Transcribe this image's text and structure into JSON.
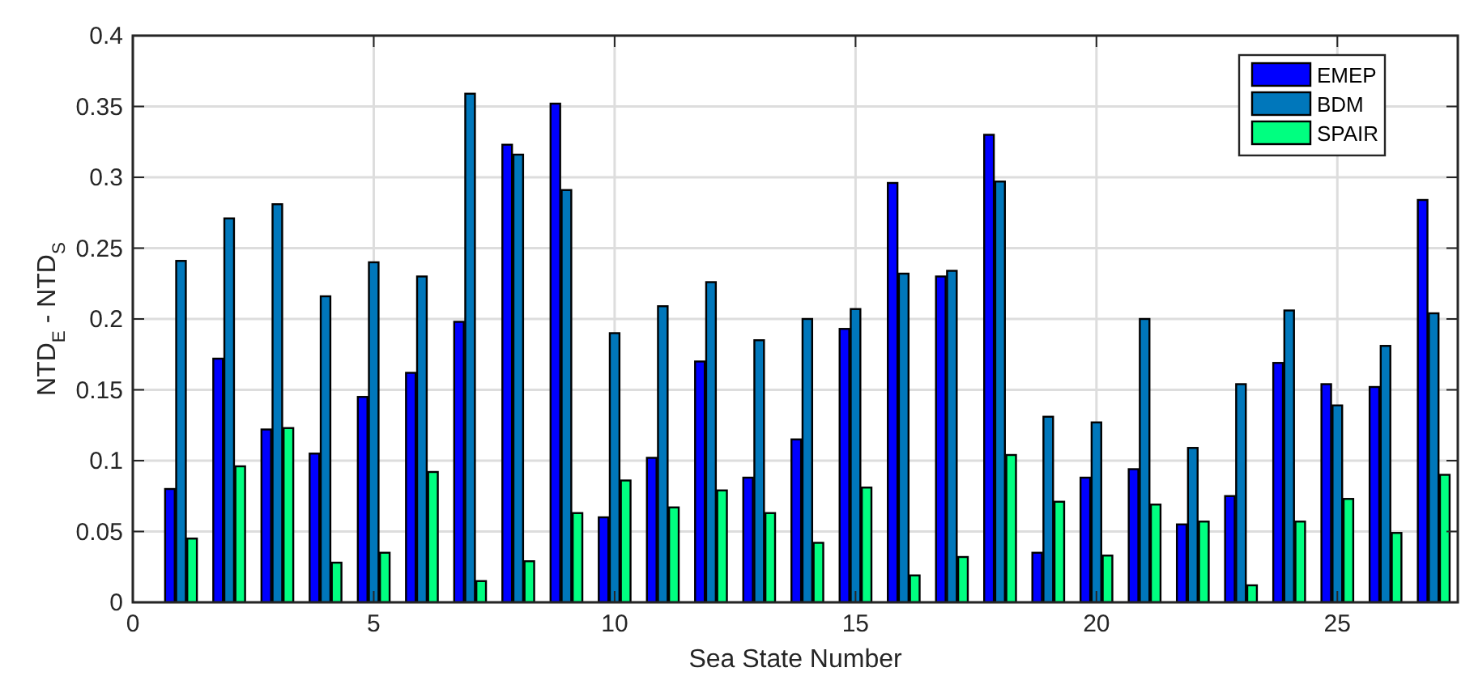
{
  "chart_data": {
    "type": "bar",
    "xlabel": "Sea State Number",
    "ylabel": "NTD$_{E}$ - NTD$_{S}$",
    "x": [
      1,
      2,
      3,
      4,
      5,
      6,
      7,
      8,
      9,
      10,
      11,
      12,
      13,
      14,
      15,
      16,
      17,
      18,
      19,
      20,
      21,
      22,
      23,
      24,
      25,
      26,
      27
    ],
    "series": [
      {
        "name": "EMEP",
        "color": "#0000ff",
        "values": [
          0.08,
          0.172,
          0.122,
          0.105,
          0.145,
          0.162,
          0.198,
          0.323,
          0.352,
          0.06,
          0.102,
          0.17,
          0.088,
          0.115,
          0.193,
          0.296,
          0.23,
          0.33,
          0.035,
          0.088,
          0.094,
          0.055,
          0.075,
          0.169,
          0.154,
          0.152,
          0.284
        ]
      },
      {
        "name": "BDM",
        "color": "#0077bb",
        "values": [
          0.241,
          0.271,
          0.281,
          0.216,
          0.24,
          0.23,
          0.359,
          0.316,
          0.291,
          0.19,
          0.209,
          0.226,
          0.185,
          0.2,
          0.207,
          0.232,
          0.234,
          0.297,
          0.131,
          0.127,
          0.2,
          0.109,
          0.154,
          0.206,
          0.139,
          0.181,
          0.204
        ]
      },
      {
        "name": "SPAIR",
        "color": "#00ff80",
        "values": [
          0.045,
          0.096,
          0.123,
          0.028,
          0.035,
          0.092,
          0.015,
          0.029,
          0.063,
          0.086,
          0.067,
          0.079,
          0.063,
          0.042,
          0.081,
          0.019,
          0.032,
          0.104,
          0.071,
          0.033,
          0.069,
          0.057,
          0.012,
          0.057,
          0.073,
          0.049,
          0.09
        ]
      }
    ],
    "xlim": [
      0,
      27.5
    ],
    "xticks": [
      0,
      5,
      10,
      15,
      20,
      25
    ],
    "ylim": [
      0,
      0.4
    ],
    "yticks": [
      0,
      0.05,
      0.1,
      0.15,
      0.2,
      0.25,
      0.3,
      0.35,
      0.4
    ],
    "grid": true,
    "legend": "top right"
  }
}
